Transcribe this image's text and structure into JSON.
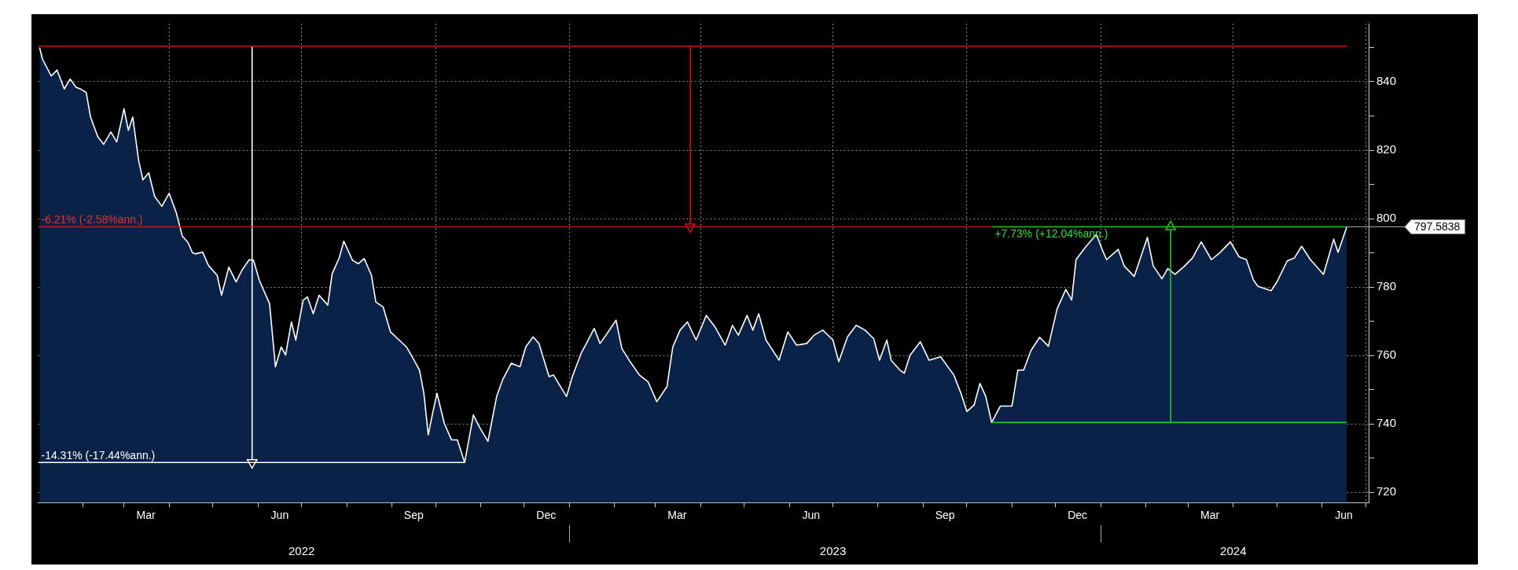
{
  "chart_data": {
    "type": "area",
    "xlim": [
      "2022-01-01",
      "2024-07-03"
    ],
    "ylim": [
      717,
      857
    ],
    "xticks": [
      {
        "value": "2022-02-01",
        "label": null
      },
      {
        "value": "2022-03-01",
        "label": null
      },
      {
        "value": "2022-03-16",
        "label": "Mar"
      },
      {
        "value": "2022-04-01",
        "label": null
      },
      {
        "value": "2022-05-01",
        "label": null
      },
      {
        "value": "2022-06-01",
        "label": null
      },
      {
        "value": "2022-06-16",
        "label": "Jun"
      },
      {
        "value": "2022-07-01",
        "label": null
      },
      {
        "value": "2022-08-01",
        "label": null
      },
      {
        "value": "2022-09-01",
        "label": null
      },
      {
        "value": "2022-09-16",
        "label": "Sep"
      },
      {
        "value": "2022-10-01",
        "label": null
      },
      {
        "value": "2022-11-01",
        "label": null
      },
      {
        "value": "2022-12-01",
        "label": null
      },
      {
        "value": "2022-12-16",
        "label": "Dec"
      },
      {
        "value": "2023-01-01",
        "label": null
      },
      {
        "value": "2023-02-01",
        "label": null
      },
      {
        "value": "2023-03-01",
        "label": null
      },
      {
        "value": "2023-03-16",
        "label": "Mar"
      },
      {
        "value": "2023-04-01",
        "label": null
      },
      {
        "value": "2023-05-01",
        "label": null
      },
      {
        "value": "2023-06-01",
        "label": null
      },
      {
        "value": "2023-06-16",
        "label": "Jun"
      },
      {
        "value": "2023-07-01",
        "label": null
      },
      {
        "value": "2023-08-01",
        "label": null
      },
      {
        "value": "2023-09-01",
        "label": null
      },
      {
        "value": "2023-09-16",
        "label": "Sep"
      },
      {
        "value": "2023-10-01",
        "label": null
      },
      {
        "value": "2023-11-01",
        "label": null
      },
      {
        "value": "2023-12-01",
        "label": null
      },
      {
        "value": "2023-12-16",
        "label": "Dec"
      },
      {
        "value": "2024-01-01",
        "label": null
      },
      {
        "value": "2024-02-01",
        "label": null
      },
      {
        "value": "2024-03-01",
        "label": null
      },
      {
        "value": "2024-03-16",
        "label": "Mar"
      },
      {
        "value": "2024-04-01",
        "label": null
      },
      {
        "value": "2024-05-01",
        "label": null
      },
      {
        "value": "2024-06-01",
        "label": null
      },
      {
        "value": "2024-06-16",
        "label": "Jun"
      },
      {
        "value": "2024-07-01",
        "label": null
      }
    ],
    "x2lim": [
      "2022-01-01",
      "2024-07-03"
    ],
    "x2ticks": [
      {
        "value": "2022-07-01",
        "label": "2022"
      },
      {
        "value": "2023-01-01",
        "label": null
      },
      {
        "value": "2023-07-01",
        "label": "2023"
      },
      {
        "value": "2024-01-01",
        "label": null
      },
      {
        "value": "2024-04-01",
        "label": "2024"
      }
    ],
    "yticks": [
      720,
      {
        "value": 730,
        "label": null
      },
      740,
      {
        "value": 750,
        "label": null
      },
      760,
      {
        "value": 770,
        "label": null
      },
      780,
      {
        "value": 790,
        "label": null
      },
      800,
      {
        "value": 810,
        "label": null
      },
      820,
      {
        "value": 830,
        "label": null
      },
      840,
      {
        "value": 850,
        "label": null
      }
    ],
    "grid": true,
    "series": [
      {
        "color": "#ffffff",
        "x": [
          "2022-01-02",
          "2022-01-04",
          "2022-01-10",
          "2022-01-14",
          "2022-01-19",
          "2022-01-23",
          "2022-01-27",
          "2022-01-30",
          "2022-02-03",
          "2022-02-06",
          "2022-02-11",
          "2022-02-15",
          "2022-02-20",
          "2022-02-24",
          "2022-03-01",
          "2022-03-04",
          "2022-03-07",
          "2022-03-11",
          "2022-03-14",
          "2022-03-18",
          "2022-03-22",
          "2022-03-27",
          "2022-04-01",
          "2022-04-06",
          "2022-04-10",
          "2022-04-14",
          "2022-04-17",
          "2022-04-19",
          "2022-04-24",
          "2022-04-28",
          "2022-05-04",
          "2022-05-07",
          "2022-05-12",
          "2022-05-17",
          "2022-05-21",
          "2022-05-26",
          "2022-05-29",
          "2022-06-02",
          "2022-06-09",
          "2022-06-13",
          "2022-06-17",
          "2022-06-20",
          "2022-06-24",
          "2022-06-27",
          "2022-07-02",
          "2022-07-05",
          "2022-07-09",
          "2022-07-13",
          "2022-07-19",
          "2022-07-22",
          "2022-07-27",
          "2022-07-30",
          "2022-08-05",
          "2022-08-09",
          "2022-08-13",
          "2022-08-18",
          "2022-08-21",
          "2022-08-26",
          "2022-08-31",
          "2022-09-06",
          "2022-09-11",
          "2022-09-15",
          "2022-09-20",
          "2022-09-23",
          "2022-09-26",
          "2022-09-29",
          "2022-10-02",
          "2022-10-07",
          "2022-10-12",
          "2022-10-16",
          "2022-10-21",
          "2022-10-27",
          "2022-10-31",
          "2022-11-06",
          "2022-11-12",
          "2022-11-16",
          "2022-11-22",
          "2022-11-28",
          "2022-12-02",
          "2022-12-07",
          "2022-12-11",
          "2022-12-18",
          "2022-12-21",
          "2022-12-30",
          "2023-01-03",
          "2023-01-09",
          "2023-01-12",
          "2023-01-18",
          "2023-01-22",
          "2023-01-26",
          "2023-02-02",
          "2023-02-06",
          "2023-02-11",
          "2023-02-18",
          "2023-02-24",
          "2023-03-02",
          "2023-03-09",
          "2023-03-13",
          "2023-03-18",
          "2023-03-23",
          "2023-03-29",
          "2023-04-05",
          "2023-04-11",
          "2023-04-18",
          "2023-04-23",
          "2023-04-27",
          "2023-05-03",
          "2023-05-07",
          "2023-05-11",
          "2023-05-16",
          "2023-05-25",
          "2023-05-31",
          "2023-06-06",
          "2023-06-13",
          "2023-06-18",
          "2023-06-24",
          "2023-07-01",
          "2023-07-05",
          "2023-07-11",
          "2023-07-17",
          "2023-07-23",
          "2023-07-29",
          "2023-08-02",
          "2023-08-07",
          "2023-08-10",
          "2023-08-16",
          "2023-08-19",
          "2023-08-23",
          "2023-08-30",
          "2023-09-05",
          "2023-09-13",
          "2023-09-22",
          "2023-09-27",
          "2023-10-01",
          "2023-10-06",
          "2023-10-10",
          "2023-10-14",
          "2023-10-18",
          "2023-10-24",
          "2023-11-01",
          "2023-11-05",
          "2023-11-09",
          "2023-11-14",
          "2023-11-20",
          "2023-11-26",
          "2023-12-02",
          "2023-12-08",
          "2023-12-12",
          "2023-12-15",
          "2023-12-21",
          "2023-12-29",
          "2024-01-02",
          "2024-01-05",
          "2024-01-13",
          "2024-01-17",
          "2024-01-24",
          "2024-02-02",
          "2024-02-06",
          "2024-02-12",
          "2024-02-16",
          "2024-02-21",
          "2024-02-27",
          "2024-03-04",
          "2024-03-10",
          "2024-03-17",
          "2024-03-23",
          "2024-03-30",
          "2024-04-05",
          "2024-04-10",
          "2024-04-15",
          "2024-04-18",
          "2024-04-27",
          "2024-05-01",
          "2024-05-08",
          "2024-05-13",
          "2024-05-18",
          "2024-05-24",
          "2024-06-02",
          "2024-06-09",
          "2024-06-12",
          "2024-06-18"
        ],
        "values": [
          850,
          846.6,
          841.7,
          843.4,
          837.9,
          840.8,
          838.4,
          837.9,
          836.9,
          829.7,
          823.9,
          821.7,
          825.3,
          822.4,
          832.1,
          825.8,
          829.7,
          817.1,
          811.3,
          813.4,
          806.5,
          803.6,
          807.4,
          801.6,
          794.9,
          793,
          790,
          789.7,
          790.2,
          786.3,
          783.4,
          777.6,
          785.8,
          781.5,
          784.9,
          788,
          787.8,
          781.9,
          775.1,
          756.7,
          762.5,
          760.1,
          769.8,
          764.5,
          776.1,
          777.1,
          772.2,
          777.6,
          774.7,
          783.9,
          788.7,
          793.4,
          787.8,
          786.8,
          788.3,
          783.4,
          775.6,
          774.2,
          766.9,
          764.5,
          762.5,
          759.6,
          755.7,
          748.9,
          736.8,
          743.1,
          748.9,
          740.2,
          735.3,
          735.3,
          728.7,
          742.6,
          739.2,
          734.9,
          748,
          752.8,
          757.7,
          756.7,
          762.5,
          765.4,
          763.5,
          753.8,
          754.3,
          748,
          753.8,
          760.6,
          763,
          767.9,
          763.5,
          765.9,
          770.3,
          762,
          758.6,
          754.3,
          752.3,
          746.5,
          750.9,
          762.5,
          767.4,
          769.8,
          764.5,
          771.7,
          768.3,
          763,
          768.8,
          765.9,
          771.7,
          767.4,
          772.2,
          764.5,
          758.6,
          766.9,
          763,
          763.5,
          765.9,
          767.4,
          764.5,
          758.2,
          765.4,
          768.8,
          767.4,
          764.9,
          758.6,
          764.5,
          758.6,
          755.7,
          754.8,
          760.1,
          764,
          758.6,
          759.6,
          754.3,
          748.9,
          743.6,
          745.5,
          751.8,
          748,
          740.4,
          745.2,
          745.2,
          755.7,
          755.7,
          761.4,
          765.3,
          762.7,
          773.6,
          779.3,
          776.2,
          788,
          791.4,
          795.4,
          790.9,
          788,
          791,
          786.2,
          783.1,
          794.5,
          786.2,
          782.4,
          785.4,
          783.7,
          785.9,
          788.5,
          793.2,
          788,
          790.1,
          793.2,
          788.8,
          788,
          781.9,
          780.2,
          778.9,
          781.5,
          787.6,
          788.5,
          791.9,
          788,
          783.7,
          794,
          790.1,
          797.5838
        ]
      },
      {
        "type": "line",
        "color": "#cc1111",
        "x": [
          "2022-01-01",
          "2024-06-18"
        ],
        "values": [
          850.4,
          850.4
        ]
      },
      {
        "type": "line",
        "color": "#cc1111",
        "x": [
          "2022-01-01",
          "2023-10-18"
        ],
        "values": [
          797.6,
          797.6
        ]
      },
      {
        "type": "line",
        "color": "#cc1111",
        "marker": "triangle",
        "x": [
          "2023-03-25",
          "2023-03-25"
        ],
        "values": [
          850.4,
          797.6
        ]
      },
      {
        "type": "line",
        "color": "#ffffff",
        "x": [
          "2022-01-01",
          "2022-10-21"
        ],
        "values": [
          728.7,
          728.7
        ]
      },
      {
        "type": "line",
        "color": "#ffffff",
        "marker": "triangle",
        "x": [
          "2022-05-28",
          "2022-05-28"
        ],
        "values": [
          850.4,
          728.7
        ]
      },
      {
        "type": "line",
        "color": "#22cc22",
        "x": [
          "2023-10-18",
          "2024-06-18"
        ],
        "values": [
          740.4,
          740.4
        ]
      },
      {
        "type": "line",
        "color": "#22cc22",
        "x": [
          "2023-10-18",
          "2024-06-18"
        ],
        "values": [
          797.6,
          797.6
        ]
      },
      {
        "type": "line",
        "color": "#22cc22",
        "marker": "triangle",
        "x": [
          "2024-02-18",
          "2024-02-18"
        ],
        "values": [
          740.4,
          797.6
        ]
      }
    ],
    "annotations": [
      {
        "text": "-6.21% (-2.58%ann.)",
        "x": "2022-01-01",
        "y": 797.6
      },
      {
        "text": "-14.31% (-17.44%ann.)",
        "x": "2022-01-01",
        "y": 728.7
      },
      {
        "text": "+7.73% (+12.04%ann.)",
        "x": "2023-10-18",
        "y": 797.6
      },
      {
        "text": "797.5838",
        "x": "2024-06-18",
        "y": 797.5838
      }
    ]
  }
}
